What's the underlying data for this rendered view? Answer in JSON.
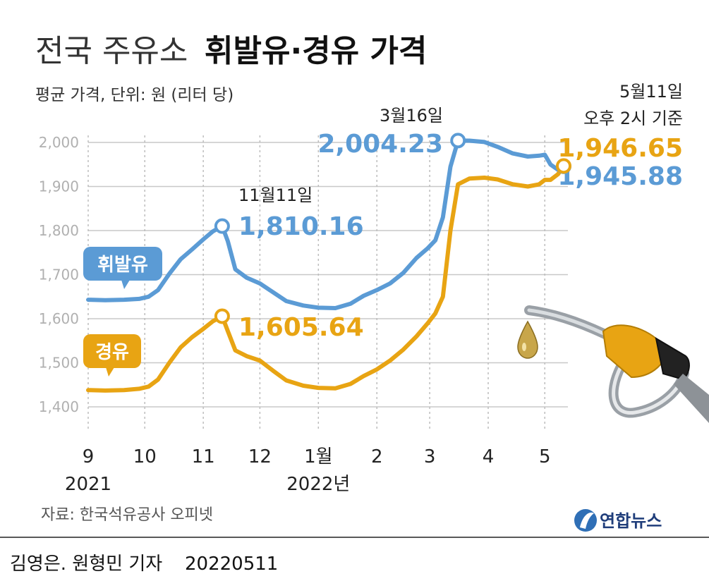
{
  "header": {
    "title_light": "전국 주유소",
    "title_bold": "휘발유·경유 가격",
    "subtitle": "평균 가격, 단위: 원 (리터 당)",
    "timestamp_line1": "5월11일",
    "timestamp_line2": "오후 2시 기준"
  },
  "footer": {
    "source": "자료: 한국석유공사 오피넷",
    "credit": "김영은. 원형민 기자",
    "date_code": "20220511",
    "logo_text": "연합뉴스"
  },
  "colors": {
    "gasoline": "#5b9bd5",
    "diesel": "#e8a413",
    "grid": "#c8c8c8",
    "axis_text": "#b0b0b0",
    "text": "#222222"
  },
  "icons": [
    "fuel-nozzle-icon",
    "fuel-drop-icon",
    "yonhap-logo-icon"
  ],
  "chart_data": {
    "type": "line",
    "title": "전국 주유소 휘발유·경유 가격",
    "subtitle": "평균 가격, 단위: 원 (리터 당)",
    "grid": true,
    "ylim": [
      1400,
      2000
    ],
    "yticks": [
      2000,
      1900,
      1800,
      1700,
      1600,
      1500,
      1400
    ],
    "ytick_labels": [
      "2,000",
      "1,900",
      "1,800",
      "1,700",
      "1,600",
      "1,500",
      "1,400"
    ],
    "x_start": "2021-09-01",
    "x_end": "2022-05-11",
    "xticks": [
      {
        "date": "2021-09-01",
        "label": "9",
        "sub": "2021"
      },
      {
        "date": "2021-10-01",
        "label": "10"
      },
      {
        "date": "2021-11-01",
        "label": "11"
      },
      {
        "date": "2021-12-01",
        "label": "12"
      },
      {
        "date": "2022-01-01",
        "label": "1월",
        "sub": "2022년"
      },
      {
        "date": "2022-02-01",
        "label": "2"
      },
      {
        "date": "2022-03-01",
        "label": "3"
      },
      {
        "date": "2022-04-01",
        "label": "4"
      },
      {
        "date": "2022-05-01",
        "label": "5"
      }
    ],
    "series": [
      {
        "name": "휘발유",
        "color": "#5b9bd5",
        "points": [
          [
            "2021-09-01",
            1643
          ],
          [
            "2021-09-10",
            1642
          ],
          [
            "2021-09-20",
            1643
          ],
          [
            "2021-09-28",
            1645
          ],
          [
            "2021-10-03",
            1650
          ],
          [
            "2021-10-08",
            1665
          ],
          [
            "2021-10-14",
            1702
          ],
          [
            "2021-10-20",
            1735
          ],
          [
            "2021-10-26",
            1757
          ],
          [
            "2021-11-01",
            1780
          ],
          [
            "2021-11-06",
            1798
          ],
          [
            "2021-11-11",
            1810.16
          ],
          [
            "2021-11-14",
            1776
          ],
          [
            "2021-11-18",
            1712
          ],
          [
            "2021-11-24",
            1693
          ],
          [
            "2021-12-01",
            1680
          ],
          [
            "2021-12-08",
            1660
          ],
          [
            "2021-12-15",
            1640
          ],
          [
            "2021-12-24",
            1630
          ],
          [
            "2022-01-01",
            1625
          ],
          [
            "2022-01-10",
            1624
          ],
          [
            "2022-01-18",
            1634
          ],
          [
            "2022-01-25",
            1652
          ],
          [
            "2022-02-01",
            1665
          ],
          [
            "2022-02-08",
            1680
          ],
          [
            "2022-02-15",
            1704
          ],
          [
            "2022-02-22",
            1738
          ],
          [
            "2022-02-28",
            1760
          ],
          [
            "2022-03-04",
            1778
          ],
          [
            "2022-03-08",
            1830
          ],
          [
            "2022-03-12",
            1945
          ],
          [
            "2022-03-16",
            2004.23
          ],
          [
            "2022-03-22",
            2004
          ],
          [
            "2022-03-30",
            2001
          ],
          [
            "2022-04-06",
            1990
          ],
          [
            "2022-04-14",
            1975
          ],
          [
            "2022-04-22",
            1968
          ],
          [
            "2022-04-28",
            1970
          ],
          [
            "2022-05-01",
            1972
          ],
          [
            "2022-05-04",
            1950
          ],
          [
            "2022-05-08",
            1938
          ],
          [
            "2022-05-11",
            1945.88
          ]
        ],
        "callouts": [
          {
            "date": "2021-11-11",
            "value": "1,810.16",
            "label": "11월11일"
          },
          {
            "date": "2022-03-16",
            "value": "2,004.23",
            "label": "3월16일"
          },
          {
            "date": "2022-05-11",
            "value": "1,945.88"
          }
        ]
      },
      {
        "name": "경유",
        "color": "#e8a413",
        "points": [
          [
            "2021-09-01",
            1438
          ],
          [
            "2021-09-10",
            1437
          ],
          [
            "2021-09-20",
            1438
          ],
          [
            "2021-09-28",
            1441
          ],
          [
            "2021-10-03",
            1446
          ],
          [
            "2021-10-08",
            1462
          ],
          [
            "2021-10-14",
            1500
          ],
          [
            "2021-10-20",
            1535
          ],
          [
            "2021-10-26",
            1558
          ],
          [
            "2021-11-01",
            1577
          ],
          [
            "2021-11-06",
            1594
          ],
          [
            "2021-11-11",
            1605.64
          ],
          [
            "2021-11-14",
            1572
          ],
          [
            "2021-11-18",
            1528
          ],
          [
            "2021-11-24",
            1515
          ],
          [
            "2021-12-01",
            1505
          ],
          [
            "2021-12-08",
            1482
          ],
          [
            "2021-12-15",
            1460
          ],
          [
            "2021-12-24",
            1448
          ],
          [
            "2022-01-01",
            1443
          ],
          [
            "2022-01-10",
            1442
          ],
          [
            "2022-01-18",
            1452
          ],
          [
            "2022-01-25",
            1470
          ],
          [
            "2022-02-01",
            1485
          ],
          [
            "2022-02-08",
            1505
          ],
          [
            "2022-02-15",
            1530
          ],
          [
            "2022-02-22",
            1560
          ],
          [
            "2022-02-28",
            1590
          ],
          [
            "2022-03-04",
            1612
          ],
          [
            "2022-03-08",
            1650
          ],
          [
            "2022-03-12",
            1800
          ],
          [
            "2022-03-16",
            1905
          ],
          [
            "2022-03-22",
            1918
          ],
          [
            "2022-03-30",
            1920
          ],
          [
            "2022-04-06",
            1916
          ],
          [
            "2022-04-14",
            1905
          ],
          [
            "2022-04-22",
            1900
          ],
          [
            "2022-04-28",
            1905
          ],
          [
            "2022-05-01",
            1915
          ],
          [
            "2022-05-04",
            1915
          ],
          [
            "2022-05-08",
            1928
          ],
          [
            "2022-05-11",
            1946.65
          ]
        ],
        "callouts": [
          {
            "date": "2021-11-11",
            "value": "1,605.64"
          },
          {
            "date": "2022-05-11",
            "value": "1,946.65"
          }
        ]
      }
    ]
  }
}
